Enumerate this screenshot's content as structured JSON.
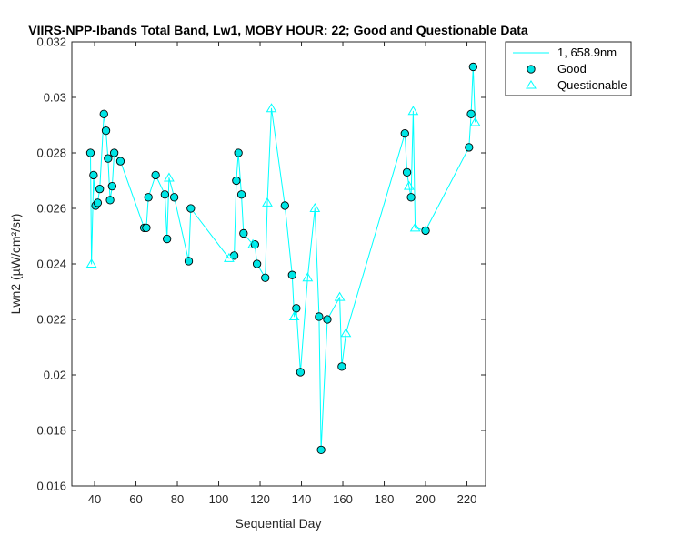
{
  "chart_data": {
    "type": "scatter",
    "title": "VIIRS-NPP-Ibands Total Band, Lw1, MOBY HOUR: 22;  Good and Questionable Data",
    "xlabel": "Sequential Day",
    "ylabel": "Lwn2 (µW/cm²/sr)",
    "xlim": [
      29,
      229
    ],
    "ylim": [
      0.016,
      0.032
    ],
    "xticks": [
      40,
      60,
      80,
      100,
      120,
      140,
      160,
      180,
      200,
      220
    ],
    "xtick_labels": [
      "40",
      "60",
      "80",
      "100",
      "120",
      "140",
      "160",
      "180",
      "200",
      "220"
    ],
    "yticks": [
      0.016,
      0.018,
      0.02,
      0.022,
      0.024,
      0.026,
      0.028,
      0.03,
      0.032
    ],
    "ytick_labels": [
      "0.016",
      "0.018",
      "0.02",
      "0.022",
      "0.024",
      "0.026",
      "0.028",
      "0.03",
      "0.032"
    ],
    "grid": false,
    "legend_position": "outside-top-right",
    "line_color": "#00FFFF",
    "marker_color": "#00E5E5",
    "series": [
      {
        "name": "1, 658.9nm",
        "style": "line",
        "x": [
          38,
          38.5,
          39.5,
          40.5,
          41.5,
          42.5,
          44.5,
          45.5,
          46.5,
          47.5,
          48.5,
          49.5,
          52.5,
          64,
          65,
          66,
          69.5,
          74,
          75,
          76,
          78.5,
          85.5,
          86.5,
          105,
          107.5,
          108.5,
          109.5,
          111,
          112,
          116.5,
          117.5,
          118.5,
          122.5,
          123.5,
          125.5,
          132,
          135.5,
          136.5,
          137.5,
          139.5,
          143,
          146.5,
          148.5,
          149.5,
          152.5,
          158.5,
          159.5,
          161.5,
          190,
          191,
          192,
          193,
          194,
          195,
          200,
          221,
          222,
          223,
          224
        ],
        "y": [
          0.028,
          0.024,
          0.0272,
          0.0261,
          0.0262,
          0.0267,
          0.0294,
          0.0288,
          0.0278,
          0.0263,
          0.0268,
          0.028,
          0.0277,
          0.0253,
          0.0253,
          0.0264,
          0.0272,
          0.0265,
          0.0249,
          0.0271,
          0.0264,
          0.0241,
          0.026,
          0.0242,
          0.0243,
          0.027,
          0.028,
          0.0265,
          0.0251,
          0.0247,
          0.0247,
          0.024,
          0.0235,
          0.0262,
          0.0296,
          0.0261,
          0.0236,
          0.0221,
          0.0224,
          0.0201,
          0.0235,
          0.026,
          0.0221,
          0.0173,
          0.022,
          0.0228,
          0.0203,
          0.0215,
          0.0287,
          0.0273,
          0.0268,
          0.0264,
          0.0295,
          0.0253,
          0.0252,
          0.0282,
          0.0294,
          0.0311,
          0.0291
        ]
      },
      {
        "name": "Good",
        "style": "circle",
        "x": [
          38,
          39.5,
          40.5,
          41.5,
          42.5,
          44.5,
          45.5,
          46.5,
          47.5,
          48.5,
          49.5,
          52.5,
          64,
          65,
          66,
          69.5,
          74,
          75,
          78.5,
          85.5,
          86.5,
          107.5,
          108.5,
          109.5,
          111,
          112,
          117.5,
          118.5,
          122.5,
          132,
          135.5,
          137.5,
          139.5,
          148.5,
          149.5,
          152.5,
          159.5,
          190,
          191,
          193,
          200,
          221,
          222,
          223
        ],
        "y": [
          0.028,
          0.0272,
          0.0261,
          0.0262,
          0.0267,
          0.0294,
          0.0288,
          0.0278,
          0.0263,
          0.0268,
          0.028,
          0.0277,
          0.0253,
          0.0253,
          0.0264,
          0.0272,
          0.0265,
          0.0249,
          0.0264,
          0.0241,
          0.026,
          0.0243,
          0.027,
          0.028,
          0.0265,
          0.0251,
          0.0247,
          0.024,
          0.0235,
          0.0261,
          0.0236,
          0.0224,
          0.0201,
          0.0221,
          0.0173,
          0.022,
          0.0203,
          0.0287,
          0.0273,
          0.0264,
          0.0252,
          0.0282,
          0.0294,
          0.0311
        ]
      },
      {
        "name": "Questionable",
        "style": "triangle",
        "x": [
          38.5,
          76,
          105,
          116.5,
          123.5,
          125.5,
          136.5,
          143,
          146.5,
          158.5,
          161.5,
          192,
          194,
          195,
          224
        ],
        "y": [
          0.024,
          0.0271,
          0.0242,
          0.0247,
          0.0262,
          0.0296,
          0.0221,
          0.0235,
          0.026,
          0.0228,
          0.0215,
          0.0268,
          0.0295,
          0.0253,
          0.0291
        ]
      }
    ]
  }
}
